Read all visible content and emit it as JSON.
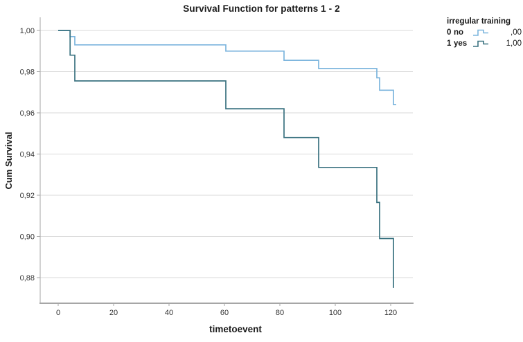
{
  "chart_data": {
    "type": "line",
    "subtype": "kaplan-meier-step",
    "title": "Survival Function for patterns 1 - 2",
    "xlabel": "timetoevent",
    "ylabel": "Cum Survival",
    "x_ticks": [
      0,
      20,
      40,
      60,
      80,
      100,
      120
    ],
    "x_tick_labels": [
      "0",
      "20",
      "40",
      "60",
      "80",
      "100",
      "120"
    ],
    "y_ticks": [
      1.0,
      0.98,
      0.96,
      0.94,
      0.92,
      0.9,
      0.88
    ],
    "y_tick_labels": [
      "1,00",
      "0,98",
      "0,96",
      "0,94",
      "0,92",
      "0,90",
      "0,88"
    ],
    "xlim": [
      -6.5,
      128
    ],
    "ylim": [
      0.868,
      1.006
    ],
    "grid": "horizontal-only",
    "colors": {
      "grid": "#d9d9d9",
      "axis": "#a6a6a6",
      "text": "#262626",
      "series_no": "#7cb5dd",
      "series_yes": "#3a7280"
    },
    "legend": {
      "title": "irregular training",
      "position": "top-right",
      "entries": [
        {
          "code": "0",
          "label": "no",
          "value": ",00",
          "color": "#7cb5dd"
        },
        {
          "code": "1",
          "label": "yes",
          "value": "1,00",
          "color": "#3a7280"
        }
      ]
    },
    "series": [
      {
        "name": ",00",
        "legend_label": "0 no",
        "color": "#7cb5dd",
        "points": [
          [
            0,
            1.0
          ],
          [
            4.3,
            1.0
          ],
          [
            4.3,
            0.997
          ],
          [
            6,
            0.997
          ],
          [
            6,
            0.993
          ],
          [
            60.5,
            0.993
          ],
          [
            60.5,
            0.99
          ],
          [
            81.5,
            0.99
          ],
          [
            81.5,
            0.9855
          ],
          [
            94,
            0.9855
          ],
          [
            94,
            0.9815
          ],
          [
            115,
            0.9815
          ],
          [
            115,
            0.977
          ],
          [
            116,
            0.977
          ],
          [
            116,
            0.971
          ],
          [
            121,
            0.971
          ],
          [
            121,
            0.964
          ],
          [
            122,
            0.964
          ]
        ]
      },
      {
        "name": "1,00",
        "legend_label": "1 yes",
        "color": "#3a7280",
        "points": [
          [
            0,
            1.0
          ],
          [
            4.3,
            1.0
          ],
          [
            4.3,
            0.988
          ],
          [
            6,
            0.988
          ],
          [
            6,
            0.9755
          ],
          [
            60.5,
            0.9755
          ],
          [
            60.5,
            0.962
          ],
          [
            81.5,
            0.962
          ],
          [
            81.5,
            0.948
          ],
          [
            94,
            0.948
          ],
          [
            94,
            0.9335
          ],
          [
            115,
            0.9335
          ],
          [
            115,
            0.9165
          ],
          [
            116,
            0.9165
          ],
          [
            116,
            0.899
          ],
          [
            121,
            0.899
          ],
          [
            121,
            0.875
          ]
        ]
      }
    ]
  }
}
